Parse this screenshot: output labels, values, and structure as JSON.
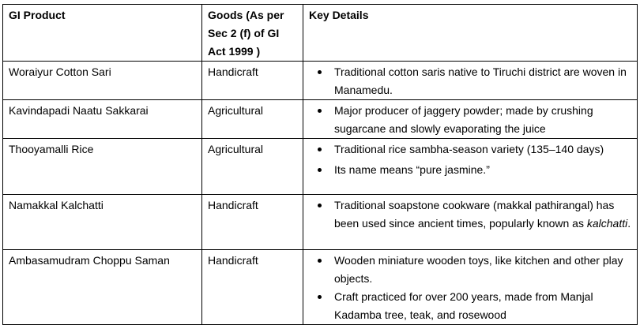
{
  "table": {
    "headers": [
      "GI Product",
      "Goods (As per Sec 2 (f) of GI Act 1999 )",
      "Key Details"
    ],
    "rows": [
      {
        "product": "Woraiyur Cotton Sari",
        "goods": "Handicraft",
        "details": [
          "Traditional cotton saris native to Tiruchi district are woven in Manamedu."
        ]
      },
      {
        "product": "Kavindapadi Naatu Sakkarai",
        "goods": "Agricultural",
        "details": [
          "Major producer of jaggery powder; made by crushing sugarcane and slowly evaporating the juice"
        ]
      },
      {
        "product": "Thooyamalli Rice",
        "goods": "Agricultural",
        "details": [
          "Traditional rice sambha-season variety (135–140 days)",
          "Its name means “pure jasmine.”"
        ]
      },
      {
        "product": "Namakkal Kalchatti",
        "goods": "Handicraft",
        "details_prefix": "Traditional soapstone cookware (makkal pathirangal) has been used since ancient times, popularly known as ",
        "details_italic": "kalchatti",
        "details_suffix": "."
      },
      {
        "product": "Ambasamudram Choppu Saman",
        "goods": "Handicraft",
        "details": [
          "Wooden miniature wooden toys, like kitchen and other play objects.",
          "Craft practiced for over 200 years, made from Manjal Kadamba tree, teak, and rosewood"
        ]
      }
    ]
  }
}
